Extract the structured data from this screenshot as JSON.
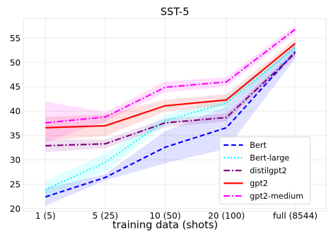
{
  "chart_data": {
    "type": "line",
    "title": "SST-5",
    "xlabel": "training data (shots)",
    "ylabel": "",
    "categories": [
      "1 (5)",
      "5 (25)",
      "10 (50)",
      "20 (100)",
      "full (8544)"
    ],
    "ylim": [
      19.5,
      59
    ],
    "yticks": [
      20,
      25,
      30,
      35,
      40,
      45,
      50,
      55
    ],
    "grid": true,
    "legend_position": "lower-right",
    "series": [
      {
        "name": "Bert",
        "values": [
          22.4,
          26.4,
          32.6,
          36.6,
          52.2
        ],
        "lower": [
          20.6,
          25.8,
          29.3,
          32.3,
          50.8
        ],
        "upper": [
          24.1,
          27.1,
          35.9,
          40.9,
          53.6
        ],
        "color": "#0000ff",
        "dash": "dashed"
      },
      {
        "name": "Bert-large",
        "values": [
          23.9,
          29.5,
          38.0,
          41.7,
          53.0
        ],
        "lower": [
          22.4,
          27.6,
          37.0,
          40.4,
          52.2
        ],
        "upper": [
          25.6,
          31.4,
          39.2,
          43.0,
          53.9
        ],
        "color": "#00ffff",
        "dash": "dotted"
      },
      {
        "name": "distilgpt2",
        "values": [
          32.9,
          33.3,
          37.6,
          38.7,
          51.9
        ],
        "lower": [
          31.6,
          32.4,
          36.7,
          37.9,
          51.2
        ],
        "upper": [
          34.2,
          34.2,
          38.5,
          39.5,
          52.6
        ],
        "color": "#800080",
        "dash": "dashdot"
      },
      {
        "name": "gpt2",
        "values": [
          36.6,
          37.0,
          41.1,
          42.3,
          53.9
        ],
        "lower": [
          34.0,
          34.9,
          39.9,
          41.1,
          53.0
        ],
        "upper": [
          38.8,
          39.3,
          42.3,
          43.5,
          54.8
        ],
        "color": "#ff0000",
        "dash": "solid"
      },
      {
        "name": "gpt2-medium",
        "values": [
          37.6,
          38.8,
          44.9,
          46.0,
          56.8
        ],
        "lower": [
          33.6,
          37.9,
          43.8,
          45.1,
          56.0
        ],
        "upper": [
          42.0,
          39.8,
          46.1,
          47.0,
          57.6
        ],
        "color": "#ff00ff",
        "dash": "dashdot"
      }
    ]
  }
}
